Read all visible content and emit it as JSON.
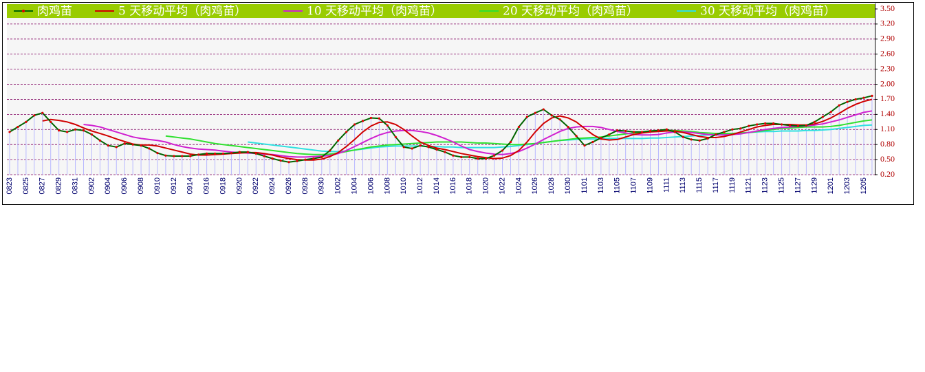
{
  "chart_data": {
    "type": "line",
    "categories": [
      "0823",
      null,
      "0825",
      null,
      "0827",
      null,
      "0829",
      null,
      "0831",
      null,
      "0902",
      null,
      "0904",
      null,
      "0906",
      null,
      "0908",
      null,
      "0910",
      null,
      "0912",
      null,
      "0914",
      null,
      "0916",
      null,
      "0918",
      null,
      "0920",
      null,
      "0922",
      null,
      "0924",
      null,
      "0926",
      null,
      "0928",
      null,
      "0930",
      null,
      "1002",
      null,
      "1004",
      null,
      "1006",
      null,
      "1008",
      null,
      "1010",
      null,
      "1012",
      null,
      "1014",
      null,
      "1016",
      null,
      "1018",
      null,
      "1020",
      null,
      "1022",
      null,
      "1024",
      null,
      "1026",
      null,
      "1028",
      null,
      "1030",
      null,
      "1101",
      null,
      "1103",
      null,
      "1105",
      null,
      "1107",
      null,
      "1109",
      null,
      "1111",
      null,
      "1113",
      null,
      "1115",
      null,
      "1117",
      null,
      "1119",
      null,
      "1121",
      null,
      "1123",
      null,
      "1125",
      null,
      "1127",
      null,
      "1129",
      null,
      "1201",
      null,
      "1203",
      null,
      "1205",
      null
    ],
    "series": [
      {
        "name": "肉鸡苗",
        "color": "#006400",
        "marker_color": "#e00000",
        "stem_color": "#b8b8ff",
        "values": [
          1.05,
          1.15,
          1.25,
          1.38,
          1.43,
          1.25,
          1.08,
          1.05,
          1.1,
          1.08,
          1.0,
          0.88,
          0.78,
          0.75,
          0.82,
          0.8,
          0.78,
          0.72,
          0.63,
          0.58,
          0.57,
          0.57,
          0.57,
          0.6,
          0.62,
          0.62,
          0.62,
          0.63,
          0.65,
          0.65,
          0.62,
          0.57,
          0.52,
          0.48,
          0.45,
          0.47,
          0.5,
          0.52,
          0.55,
          0.68,
          0.88,
          1.05,
          1.2,
          1.27,
          1.33,
          1.32,
          1.18,
          0.95,
          0.75,
          0.72,
          0.78,
          0.75,
          0.7,
          0.65,
          0.58,
          0.55,
          0.55,
          0.52,
          0.52,
          0.58,
          0.68,
          0.85,
          1.15,
          1.35,
          1.43,
          1.5,
          1.38,
          1.3,
          1.15,
          0.97,
          0.78,
          0.85,
          0.93,
          1.0,
          1.08,
          1.07,
          1.05,
          1.05,
          1.07,
          1.08,
          1.1,
          1.05,
          0.95,
          0.9,
          0.88,
          0.92,
          1.0,
          1.05,
          1.1,
          1.12,
          1.17,
          1.2,
          1.22,
          1.22,
          1.2,
          1.18,
          1.17,
          1.18,
          1.25,
          1.35,
          1.45,
          1.58,
          1.65,
          1.7,
          1.73,
          1.77
        ]
      },
      {
        "name": "5  天移动平均（肉鸡苗）",
        "color": "#d00000",
        "values": [
          null,
          null,
          null,
          null,
          1.27,
          1.3,
          1.28,
          1.25,
          1.2,
          1.13,
          1.07,
          1.02,
          0.97,
          0.91,
          0.86,
          0.81,
          0.79,
          0.79,
          0.77,
          0.73,
          0.69,
          0.65,
          0.61,
          0.59,
          0.59,
          0.6,
          0.61,
          0.62,
          0.63,
          0.64,
          0.64,
          0.62,
          0.59,
          0.55,
          0.52,
          0.5,
          0.49,
          0.49,
          0.51,
          0.56,
          0.64,
          0.76,
          0.9,
          1.05,
          1.17,
          1.24,
          1.25,
          1.2,
          1.1,
          0.97,
          0.85,
          0.78,
          0.73,
          0.7,
          0.66,
          0.62,
          0.59,
          0.56,
          0.54,
          0.52,
          0.53,
          0.58,
          0.68,
          0.85,
          1.05,
          1.22,
          1.33,
          1.37,
          1.33,
          1.25,
          1.12,
          1.0,
          0.91,
          0.89,
          0.9,
          0.95,
          1.0,
          1.03,
          1.05,
          1.06,
          1.07,
          1.07,
          1.04,
          1.0,
          0.96,
          0.94,
          0.94,
          0.96,
          1.0,
          1.05,
          1.1,
          1.15,
          1.18,
          1.2,
          1.2,
          1.2,
          1.19,
          1.19,
          1.21,
          1.26,
          1.33,
          1.42,
          1.52,
          1.6,
          1.66,
          1.7
        ]
      },
      {
        "name": "10  天移动平均（肉鸡苗）",
        "color": "#d020d0",
        "values": [
          null,
          null,
          null,
          null,
          null,
          null,
          null,
          null,
          null,
          1.2,
          1.18,
          1.15,
          1.1,
          1.05,
          1.0,
          0.95,
          0.92,
          0.9,
          0.88,
          0.85,
          0.8,
          0.76,
          0.73,
          0.71,
          0.7,
          0.69,
          0.67,
          0.65,
          0.64,
          0.63,
          0.62,
          0.61,
          0.6,
          0.58,
          0.56,
          0.55,
          0.55,
          0.56,
          0.57,
          0.58,
          0.62,
          0.68,
          0.76,
          0.84,
          0.92,
          0.99,
          1.04,
          1.07,
          1.08,
          1.08,
          1.06,
          1.03,
          0.98,
          0.92,
          0.85,
          0.77,
          0.7,
          0.66,
          0.63,
          0.61,
          0.6,
          0.62,
          0.66,
          0.73,
          0.81,
          0.9,
          0.98,
          1.06,
          1.12,
          1.15,
          1.16,
          1.16,
          1.14,
          1.1,
          1.06,
          1.03,
          1.0,
          0.99,
          0.99,
          1.0,
          1.03,
          1.05,
          1.05,
          1.04,
          1.02,
          1.0,
          0.99,
          0.99,
          1.0,
          1.01,
          1.04,
          1.07,
          1.1,
          1.12,
          1.14,
          1.15,
          1.16,
          1.17,
          1.19,
          1.21,
          1.25,
          1.29,
          1.34,
          1.39,
          1.44,
          1.47
        ]
      },
      {
        "name": "20  天移动平均（肉鸡苗）",
        "color": "#30e030",
        "values": [
          null,
          null,
          null,
          null,
          null,
          null,
          null,
          null,
          null,
          null,
          null,
          null,
          null,
          null,
          null,
          null,
          null,
          null,
          null,
          0.97,
          0.95,
          0.93,
          0.91,
          0.88,
          0.85,
          0.82,
          0.8,
          0.78,
          0.76,
          0.74,
          0.72,
          0.7,
          0.68,
          0.66,
          0.64,
          0.62,
          0.61,
          0.6,
          0.6,
          0.61,
          0.63,
          0.66,
          0.69,
          0.72,
          0.75,
          0.77,
          0.79,
          0.8,
          0.81,
          0.82,
          0.83,
          0.84,
          0.85,
          0.85,
          0.85,
          0.85,
          0.84,
          0.83,
          0.83,
          0.82,
          0.81,
          0.8,
          0.8,
          0.81,
          0.82,
          0.84,
          0.86,
          0.88,
          0.9,
          0.92,
          0.93,
          0.94,
          0.95,
          0.97,
          0.99,
          1.01,
          1.03,
          1.05,
          1.07,
          1.08,
          1.08,
          1.08,
          1.07,
          1.06,
          1.04,
          1.03,
          1.02,
          1.02,
          1.02,
          1.03,
          1.04,
          1.06,
          1.08,
          1.1,
          1.12,
          1.13,
          1.14,
          1.15,
          1.15,
          1.15,
          1.16,
          1.18,
          1.21,
          1.24,
          1.27,
          1.29
        ]
      },
      {
        "name": "30  天移动平均（肉鸡苗）",
        "color": "#30e0e0",
        "values": [
          null,
          null,
          null,
          null,
          null,
          null,
          null,
          null,
          null,
          null,
          null,
          null,
          null,
          null,
          null,
          null,
          null,
          null,
          null,
          null,
          null,
          null,
          null,
          null,
          null,
          null,
          null,
          null,
          null,
          0.85,
          0.83,
          0.81,
          0.79,
          0.77,
          0.75,
          0.73,
          0.71,
          0.69,
          0.67,
          0.66,
          0.66,
          0.67,
          0.69,
          0.71,
          0.73,
          0.75,
          0.76,
          0.77,
          0.77,
          0.77,
          0.77,
          0.76,
          0.76,
          0.75,
          0.75,
          0.74,
          0.74,
          0.74,
          0.74,
          0.74,
          0.75,
          0.76,
          0.78,
          0.8,
          0.82,
          0.84,
          0.86,
          0.88,
          0.89,
          0.9,
          0.91,
          0.91,
          0.91,
          0.92,
          0.92,
          0.92,
          0.92,
          0.92,
          0.93,
          0.93,
          0.94,
          0.95,
          0.96,
          0.97,
          0.98,
          0.99,
          1.0,
          1.01,
          1.02,
          1.03,
          1.04,
          1.05,
          1.06,
          1.06,
          1.07,
          1.07,
          1.07,
          1.08,
          1.08,
          1.09,
          1.1,
          1.12,
          1.14,
          1.16,
          1.18,
          1.19
        ]
      }
    ],
    "ylim": [
      0.2,
      3.5
    ],
    "yticks": [
      {
        "value": 3.5,
        "label": "3.50"
      },
      {
        "value": 3.2,
        "label": "3.20"
      },
      {
        "value": 2.9,
        "label": "2.90"
      },
      {
        "value": 2.6,
        "label": "2.60"
      },
      {
        "value": 2.3,
        "label": "2.30"
      },
      {
        "value": 2.0,
        "label": "2.00"
      },
      {
        "value": 1.7,
        "label": "1.70"
      },
      {
        "value": 1.4,
        "label": "1.40"
      },
      {
        "value": 1.1,
        "label": "1.10"
      },
      {
        "value": 0.8,
        "label": "0.80"
      },
      {
        "value": 0.5,
        "label": "0.50"
      },
      {
        "value": 0.2,
        "label": "0.20"
      }
    ],
    "grid": true,
    "grid_color": "#800060",
    "legend_position": "top",
    "legend_color": "#99cc00"
  }
}
